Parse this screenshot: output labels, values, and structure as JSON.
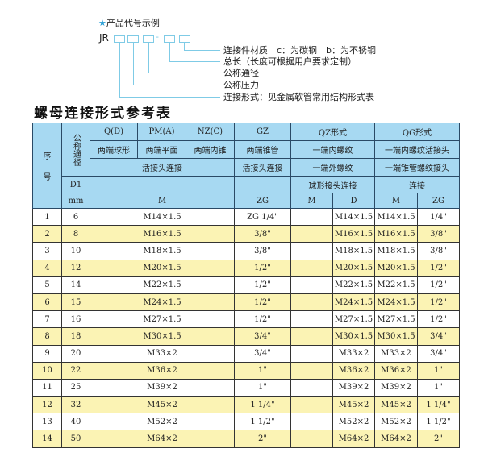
{
  "example": {
    "star_icon": "star",
    "heading": "产品代号示例",
    "code_prefix": "JR",
    "dash": "-",
    "labels": [
      "连接件材质　c：为碳钢　b：为不锈钢",
      "总长（长度可根据用户要求定制）",
      "公称通径",
      "公称压力",
      "连接形式：见金属软管常用结构形式表"
    ]
  },
  "title": "螺母连接形式参考表",
  "header": {
    "seq": "序\n\n号",
    "nominal": "公称通径",
    "d1": "D1",
    "mm": "mm",
    "types": [
      "Q(D)",
      "PM(A)",
      "NZ(C)",
      "GZ",
      "QZ形式",
      "QG形式"
    ],
    "shapes": [
      "两端球形",
      "两端平面",
      "两端内锥",
      "两端锥管",
      "一端内螺纹",
      "一端内螺纹活接头"
    ],
    "conn": [
      "活接头连接",
      "活接头连接",
      "一端外螺纹",
      "一端锥管螺纹接头"
    ],
    "conn2": [
      "球形接头连接",
      "连接"
    ],
    "units": [
      "M",
      "ZG",
      "M",
      "D",
      "M",
      "ZG"
    ]
  },
  "rows": [
    [
      "1",
      "6",
      "M14×1.5",
      "ZG 1/4\"",
      "",
      "M14×1.5",
      "M14×1.5",
      "1/4\""
    ],
    [
      "2",
      "8",
      "M16×1.5",
      "3/8\"",
      "",
      "M16×1.5",
      "M16×1.5",
      "3/8\""
    ],
    [
      "3",
      "10",
      "M18×1.5",
      "3/8\"",
      "",
      "M18×1.5",
      "M18×1.5",
      "3/8\""
    ],
    [
      "4",
      "12",
      "M20×1.5",
      "1/2\"",
      "",
      "M20×1.5",
      "M20×1.5",
      "1/2\""
    ],
    [
      "5",
      "14",
      "M22×1.5",
      "1/2\"",
      "",
      "M22×1.5",
      "M22×1.5",
      "1/2\""
    ],
    [
      "6",
      "15",
      "M24×1.5",
      "1/2\"",
      "",
      "M24×1.5",
      "M24×1.5",
      "1/2\""
    ],
    [
      "7",
      "16",
      "M27×1.5",
      "1/2\"",
      "",
      "M27×1.5",
      "M27×1.5",
      "1/2\""
    ],
    [
      "8",
      "18",
      "M30×1.5",
      "3/4\"",
      "",
      "M30×1.5",
      "M30×1.5",
      "3/4\""
    ],
    [
      "9",
      "20",
      "M33×2",
      "3/4\"",
      "",
      "M33×2",
      "M33×2",
      "3/4\""
    ],
    [
      "10",
      "22",
      "M36×2",
      "1\"",
      "",
      "M36×2",
      "M36×2",
      "1\""
    ],
    [
      "11",
      "25",
      "M39×2",
      "1\"",
      "",
      "M39×2",
      "M39×2",
      "1\""
    ],
    [
      "12",
      "32",
      "M45×2",
      "1 1/4\"",
      "",
      "M45×2",
      "M45×2",
      "1 1/4\""
    ],
    [
      "13",
      "40",
      "M52×2",
      "1 1/2\"",
      "",
      "M52×2",
      "M52×2",
      "1 1/2\""
    ],
    [
      "14",
      "50",
      "M64×2",
      "2\"",
      "",
      "M64×2",
      "M64×2",
      "2\""
    ]
  ],
  "colors": {
    "header": "#a7d9f2",
    "even_row": "#fbf3b4",
    "diagram_line": "#7fcbe6",
    "star": "#2a9fd6"
  }
}
